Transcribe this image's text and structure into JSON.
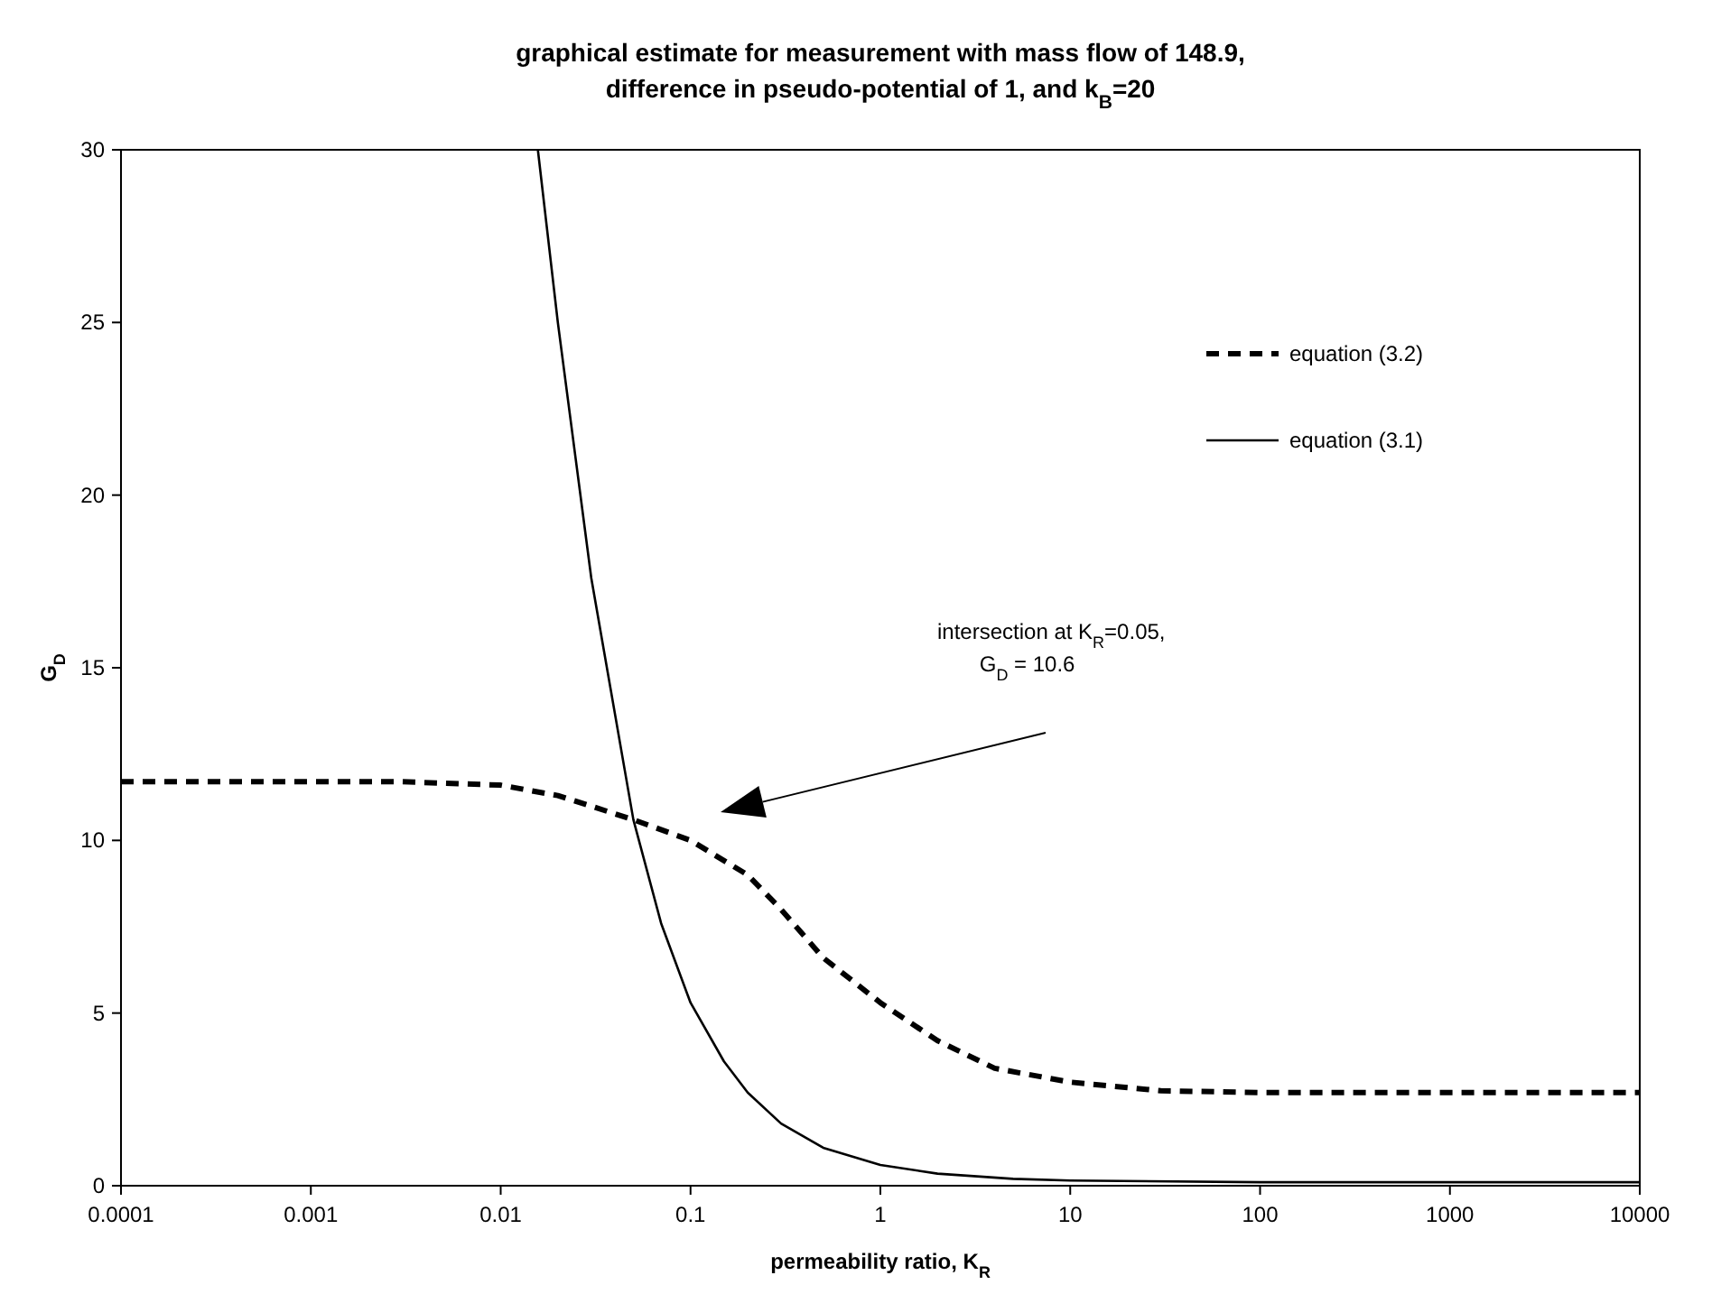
{
  "chart_data": {
    "type": "line",
    "title": "graphical estimate for measurement with mass flow of 148.9, difference in pseudo-potential of 1, and k$_{B}$=20",
    "xlabel": "permeability ratio, K$_{R}$",
    "ylabel": "G$_{D}$",
    "log": "x",
    "xlim": [
      0.0001,
      10000
    ],
    "xticks": [
      0.0001,
      0.001,
      0.01,
      0.1,
      1,
      10,
      100,
      1000,
      10000
    ],
    "ylim": [
      0,
      30
    ],
    "yticks": [
      0,
      5,
      10,
      15,
      20,
      25,
      30
    ],
    "grid": false,
    "legend": "top right",
    "marker": "none",
    "series": [
      {
        "name": "equation (3.2)",
        "color": "#000000",
        "line_style": "dashed",
        "x": [
          0.0001,
          0.0003,
          0.001,
          0.003,
          0.01,
          0.02,
          0.05,
          0.1,
          0.2,
          0.3,
          0.5,
          1,
          2,
          4,
          10,
          30,
          100,
          1000,
          10000
        ],
        "values": [
          11.7,
          11.7,
          11.7,
          11.7,
          11.6,
          11.3,
          10.6,
          10.0,
          9.0,
          8.0,
          6.6,
          5.3,
          4.2,
          3.4,
          3.0,
          2.75,
          2.7,
          2.7,
          2.7
        ]
      },
      {
        "name": "equation (3.1)",
        "color": "#000000",
        "line_style": "solid",
        "x": [
          0.0157,
          0.02,
          0.03,
          0.05,
          0.07,
          0.1,
          0.15,
          0.2,
          0.3,
          0.5,
          1,
          2,
          5,
          10,
          100,
          1000,
          10000
        ],
        "values": [
          30,
          25,
          17.6,
          10.6,
          7.6,
          5.3,
          3.6,
          2.7,
          1.8,
          1.1,
          0.6,
          0.35,
          0.2,
          0.15,
          0.1,
          0.1,
          0.1
        ]
      }
    ],
    "annotations": [
      "intersection at K$_{R}$=0.05, G$_{D}$ = 10.6"
    ]
  }
}
